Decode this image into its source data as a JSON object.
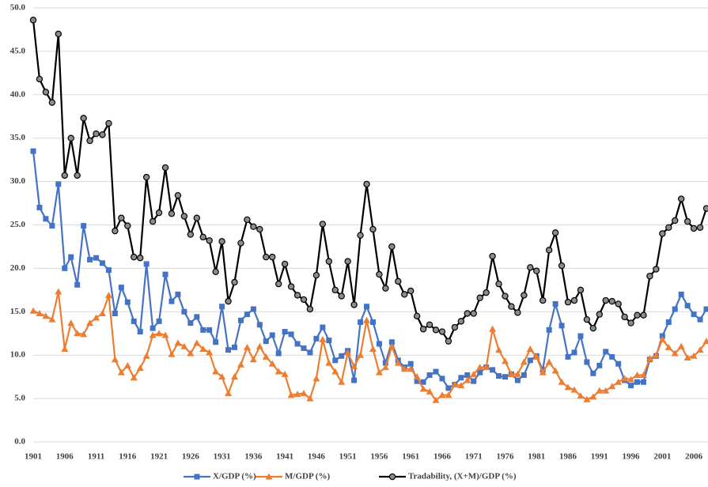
{
  "chart_data": {
    "type": "line",
    "x": [
      1901,
      1902,
      1903,
      1904,
      1905,
      1906,
      1907,
      1908,
      1909,
      1910,
      1911,
      1912,
      1913,
      1914,
      1915,
      1916,
      1917,
      1918,
      1919,
      1920,
      1921,
      1922,
      1923,
      1924,
      1925,
      1926,
      1927,
      1928,
      1929,
      1930,
      1931,
      1932,
      1933,
      1934,
      1935,
      1936,
      1937,
      1938,
      1939,
      1940,
      1941,
      1942,
      1943,
      1944,
      1945,
      1946,
      1947,
      1948,
      1949,
      1950,
      1951,
      1952,
      1953,
      1954,
      1955,
      1956,
      1957,
      1958,
      1959,
      1960,
      1961,
      1962,
      1963,
      1964,
      1965,
      1966,
      1967,
      1968,
      1969,
      1970,
      1971,
      1972,
      1973,
      1974,
      1975,
      1976,
      1977,
      1978,
      1979,
      1980,
      1981,
      1982,
      1983,
      1984,
      1985,
      1986,
      1987,
      1988,
      1989,
      1990,
      1991,
      1992,
      1993,
      1994,
      1995,
      1996,
      1997,
      1998,
      1999,
      2000,
      2001,
      2002,
      2003,
      2004,
      2005,
      2006,
      2007,
      2008
    ],
    "xlim": [
      1901,
      2008
    ],
    "xticks": [
      1901,
      1906,
      1911,
      1916,
      1921,
      1926,
      1931,
      1936,
      1941,
      1946,
      1951,
      1956,
      1961,
      1966,
      1971,
      1976,
      1981,
      1986,
      1991,
      1996,
      2001,
      2006
    ],
    "ylim": [
      0,
      50
    ],
    "yticks": [
      {
        "value": 0,
        "label": "0.0"
      },
      {
        "value": 5,
        "label": "5.0"
      },
      {
        "value": 10,
        "label": "10.0"
      },
      {
        "value": 15,
        "label": "15.0"
      },
      {
        "value": 20,
        "label": "20.0"
      },
      {
        "value": 25,
        "label": "25.0"
      },
      {
        "value": 30,
        "label": "30.0"
      },
      {
        "value": 35,
        "label": "35.0"
      },
      {
        "value": 40,
        "label": "40.0"
      },
      {
        "value": 45,
        "label": "45.0"
      },
      {
        "value": 50,
        "label": "50.0"
      }
    ],
    "grid": true,
    "legend": "bottom",
    "series": [
      {
        "name": "X/GDP (%)",
        "color": "#4472c4",
        "marker": "square",
        "values": [
          33.5,
          27.0,
          25.7,
          24.9,
          29.7,
          20.0,
          21.3,
          18.1,
          24.9,
          21.0,
          21.2,
          20.6,
          19.8,
          14.8,
          17.8,
          16.1,
          13.9,
          12.7,
          20.5,
          13.1,
          13.9,
          19.3,
          16.2,
          17.0,
          15.0,
          13.7,
          14.4,
          12.9,
          12.9,
          11.5,
          15.6,
          10.6,
          10.9,
          14.0,
          14.7,
          15.3,
          13.5,
          11.6,
          12.3,
          10.2,
          12.7,
          12.4,
          11.3,
          10.8,
          10.3,
          11.9,
          13.2,
          11.7,
          9.4,
          9.9,
          10.5,
          7.1,
          13.8,
          15.6,
          13.8,
          11.3,
          9.1,
          11.5,
          9.4,
          8.6,
          9.0,
          7.0,
          6.9,
          7.7,
          8.1,
          7.3,
          6.2,
          6.6,
          7.4,
          7.7,
          7.0,
          8.0,
          8.6,
          8.3,
          7.6,
          7.5,
          7.8,
          7.1,
          7.7,
          9.4,
          9.9,
          8.3,
          12.9,
          15.9,
          13.4,
          9.8,
          10.3,
          12.2,
          9.2,
          7.9,
          8.8,
          10.4,
          9.8,
          9.0,
          7.1,
          6.5,
          6.9,
          6.9,
          9.5,
          9.9,
          12.2,
          13.8,
          15.3,
          17.0,
          15.7,
          14.7,
          14.1,
          15.3
        ]
      },
      {
        "name": "M/GDP (%)",
        "color": "#ed7d31",
        "marker": "triangle",
        "values": [
          15.1,
          14.8,
          14.5,
          14.1,
          17.3,
          10.7,
          13.7,
          12.5,
          12.4,
          13.7,
          14.3,
          14.8,
          16.9,
          9.5,
          8.0,
          8.8,
          7.4,
          8.5,
          9.9,
          12.3,
          12.5,
          12.3,
          10.1,
          11.4,
          11.0,
          10.2,
          11.4,
          10.7,
          10.3,
          8.1,
          7.5,
          5.6,
          7.5,
          8.9,
          10.9,
          9.5,
          11.0,
          9.8,
          9.0,
          8.1,
          7.8,
          5.4,
          5.5,
          5.6,
          5.0,
          7.3,
          11.8,
          9.1,
          8.1,
          6.9,
          10.3,
          8.7,
          10.0,
          14.0,
          10.7,
          8.0,
          8.6,
          11.0,
          9.1,
          8.4,
          8.4,
          7.5,
          6.1,
          5.8,
          4.8,
          5.4,
          5.4,
          6.6,
          6.5,
          7.1,
          7.8,
          8.6,
          8.6,
          13.0,
          10.6,
          9.3,
          7.8,
          7.8,
          9.2,
          10.7,
          9.8,
          8.0,
          9.2,
          8.2,
          6.9,
          6.3,
          6.0,
          5.3,
          4.9,
          5.2,
          5.9,
          5.9,
          6.4,
          6.9,
          7.3,
          7.2,
          7.7,
          7.7,
          9.6,
          10.0,
          11.8,
          10.9,
          10.2,
          11.0,
          9.7,
          9.9,
          10.6,
          11.6
        ]
      },
      {
        "name": "Tradability, (X+M)/GDP (%)",
        "color": "#000000",
        "marker": "circle",
        "values": [
          48.6,
          41.8,
          40.3,
          39.1,
          47.0,
          30.7,
          35.0,
          30.7,
          37.3,
          34.7,
          35.5,
          35.4,
          36.7,
          24.3,
          25.8,
          24.9,
          21.3,
          21.2,
          30.5,
          25.4,
          26.4,
          31.6,
          26.3,
          28.4,
          26.0,
          23.9,
          25.8,
          23.6,
          23.2,
          19.6,
          23.1,
          16.2,
          18.4,
          22.9,
          25.6,
          24.8,
          24.5,
          21.3,
          21.3,
          18.2,
          20.5,
          17.9,
          16.9,
          16.4,
          15.3,
          19.2,
          25.1,
          20.8,
          17.5,
          16.8,
          20.8,
          15.8,
          23.8,
          29.7,
          24.5,
          19.3,
          17.7,
          22.5,
          18.5,
          17.0,
          17.4,
          14.5,
          13.0,
          13.5,
          12.9,
          12.7,
          11.6,
          13.2,
          13.9,
          14.8,
          14.8,
          16.6,
          17.2,
          21.4,
          18.2,
          16.8,
          15.6,
          14.9,
          16.9,
          20.1,
          19.7,
          16.3,
          22.1,
          24.1,
          20.3,
          16.1,
          16.3,
          17.5,
          14.1,
          13.1,
          14.7,
          16.3,
          16.2,
          15.9,
          14.4,
          13.7,
          14.6,
          14.6,
          19.1,
          19.9,
          24.0,
          24.7,
          25.5,
          28.0,
          25.4,
          24.6,
          24.7,
          26.9
        ]
      }
    ]
  }
}
